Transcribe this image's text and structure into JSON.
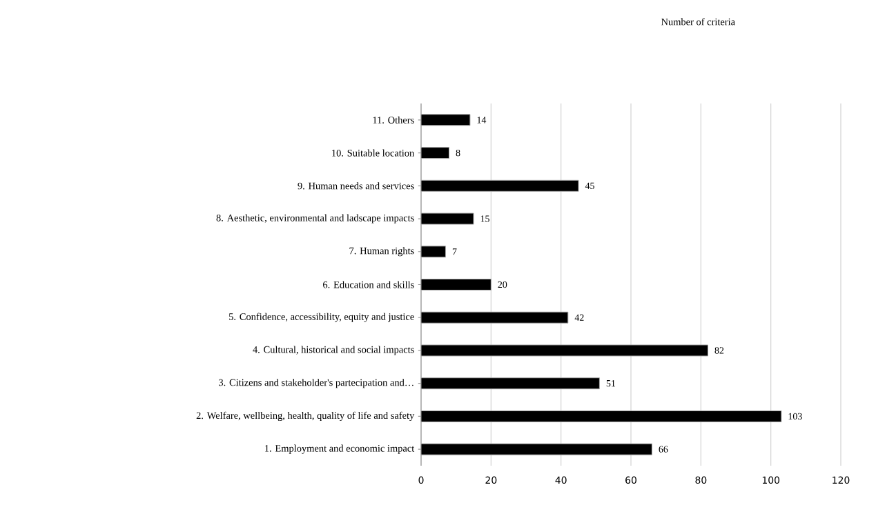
{
  "chart_data": {
    "type": "bar",
    "orientation": "horizontal",
    "title": "Number of criteria",
    "categories": [
      "11. Others",
      "10. Suitable location",
      "9. Human needs and services",
      "8. Aesthetic, environmental and ladscape impacts",
      "7. Human rights",
      "6. Education and skills",
      "5. Confidence, accessibility, equity and justice",
      "4. Cultural, historical and social impacts",
      "3. Citizens and stakeholder's partecipation and…",
      "2. Welfare, wellbeing, health, quality of life and safety",
      "1. Employment and economic impact"
    ],
    "values": [
      14,
      8,
      45,
      15,
      7,
      20,
      42,
      82,
      51,
      103,
      66
    ],
    "color": "#000000",
    "xlim": [
      0,
      120
    ],
    "xticks": [
      0,
      20,
      40,
      60,
      80,
      100,
      120
    ],
    "grid": "x",
    "data_labels": true
  }
}
